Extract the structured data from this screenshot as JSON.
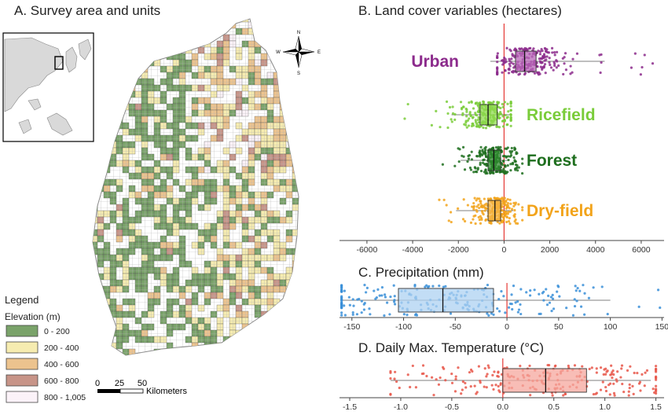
{
  "panels": {
    "a_title": "A. Survey area and units",
    "b_title": "B. Land cover variables (hectares)",
    "c_title": "C. Precipitation (mm)",
    "d_title": "D. Daily Max. Temperature (°C)"
  },
  "legend": {
    "heading": "Legend",
    "subheading": "Elevation (m)",
    "items": [
      {
        "label": "0 - 200",
        "color": "#7aa36a"
      },
      {
        "label": "200 - 400",
        "color": "#f6ecb0"
      },
      {
        "label": "400 - 600",
        "color": "#ecc38e"
      },
      {
        "label": "600 - 800",
        "color": "#c79488"
      },
      {
        "label": "800 - 1,005",
        "color": "#fbf2f8"
      }
    ]
  },
  "scalebar": {
    "ticks": [
      "0",
      "25",
      "50"
    ],
    "unit": "Kilometers"
  },
  "compass": {
    "n": "N",
    "e": "E",
    "s": "S",
    "w": "W"
  },
  "chart_data": [
    {
      "type": "boxplot",
      "title": "B. Land cover variables (hectares)",
      "xlim": [
        -7200,
        7000
      ],
      "ticks": [
        -6000,
        -4000,
        -2000,
        0,
        2000,
        4000,
        6000
      ],
      "tick_labels": [
        "-6000",
        "-4000",
        "-2000",
        "0",
        "2000",
        "4000",
        "6000"
      ],
      "reference_line": 0,
      "series": [
        {
          "name": "Urban",
          "color": "#8c2b8c",
          "box_color": "#b866b8",
          "whisker": [
            -600,
            4400
          ],
          "q1": 500,
          "median": 900,
          "q3": 1400,
          "range": [
            -300,
            6600
          ]
        },
        {
          "name": "Ricefield",
          "color": "#7acc3a",
          "box_color": "#8fd94f",
          "whisker": [
            -2300,
            300
          ],
          "q1": -1050,
          "median": -700,
          "q3": -300,
          "range": [
            -5000,
            300
          ]
        },
        {
          "name": "Forest",
          "color": "#1e6e1e",
          "box_color": "#2e8b2e",
          "whisker": [
            -1900,
            200
          ],
          "q1": -700,
          "median": -450,
          "q3": -150,
          "range": [
            -3100,
            800
          ]
        },
        {
          "name": "Dry-field",
          "color": "#f2a31a",
          "box_color": "#f5b445",
          "whisker": [
            -2100,
            400
          ],
          "q1": -700,
          "median": -400,
          "q3": -150,
          "range": [
            -2900,
            800
          ]
        }
      ]
    },
    {
      "type": "boxplot",
      "title": "C. Precipitation (mm)",
      "xlim": [
        -162,
        152
      ],
      "ticks": [
        -150,
        -100,
        -50,
        0,
        50,
        100,
        150
      ],
      "tick_labels": [
        "-150",
        "-100",
        "-50",
        "0",
        "50",
        "100",
        "150"
      ],
      "reference_line": 0,
      "series": [
        {
          "name": "",
          "color": "#3a8fd8",
          "box_color": "#aed2f2",
          "whisker": [
            -160,
            100
          ],
          "q1": -105,
          "median": -62,
          "q3": -13,
          "range": [
            -160,
            148
          ]
        }
      ]
    },
    {
      "type": "boxplot",
      "title": "D. Daily Max. Temperature (°C)",
      "xlim": [
        -1.6,
        1.58
      ],
      "ticks": [
        -1.5,
        -1.0,
        -0.5,
        0.0,
        0.5,
        1.0,
        1.5
      ],
      "tick_labels": [
        "-1.5",
        "-1.0",
        "-0.5",
        "0.0",
        "0.5",
        "1.0",
        "1.5"
      ],
      "reference_line": 0,
      "series": [
        {
          "name": "",
          "color": "#e8574a",
          "box_color": "#f6a79e",
          "whisker": [
            -1.1,
            1.45
          ],
          "q1": 0.0,
          "median": 0.42,
          "q3": 0.82,
          "range": [
            -1.1,
            1.5
          ]
        }
      ]
    }
  ]
}
